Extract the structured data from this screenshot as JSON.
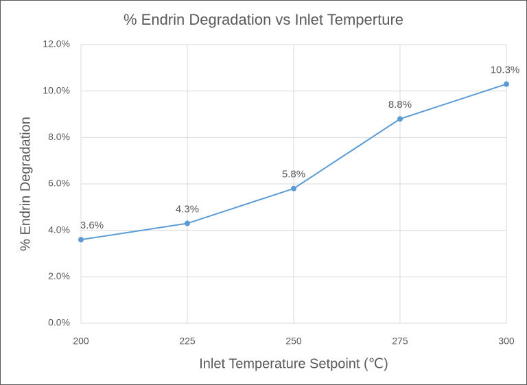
{
  "chart_data": {
    "type": "line",
    "title": "% Endrin Degradation vs Inlet Temperture",
    "x_label": "Inlet Temperature Setpoint (℃)",
    "y_label": "% Endrin Degradation",
    "x": [
      200,
      225,
      250,
      275,
      300
    ],
    "values": [
      3.6,
      4.3,
      5.8,
      8.8,
      10.3
    ],
    "value_labels": [
      "3.6%",
      "4.3%",
      "5.8%",
      "8.8%",
      "10.3%"
    ],
    "color": "#5b9bd5",
    "xlim": [
      200,
      300
    ],
    "xticks": [
      200,
      225,
      250,
      275,
      300
    ],
    "ylim": [
      0,
      12
    ],
    "yticks": [
      {
        "value": 0,
        "label": "0.0%"
      },
      {
        "value": 2,
        "label": "2.0%"
      },
      {
        "value": 4,
        "label": "4.0%"
      },
      {
        "value": 6,
        "label": "6.0%"
      },
      {
        "value": 8,
        "label": "8.0%"
      },
      {
        "value": 10,
        "label": "10.0%"
      },
      {
        "value": 12,
        "label": "12.0%"
      }
    ],
    "grid": true
  }
}
